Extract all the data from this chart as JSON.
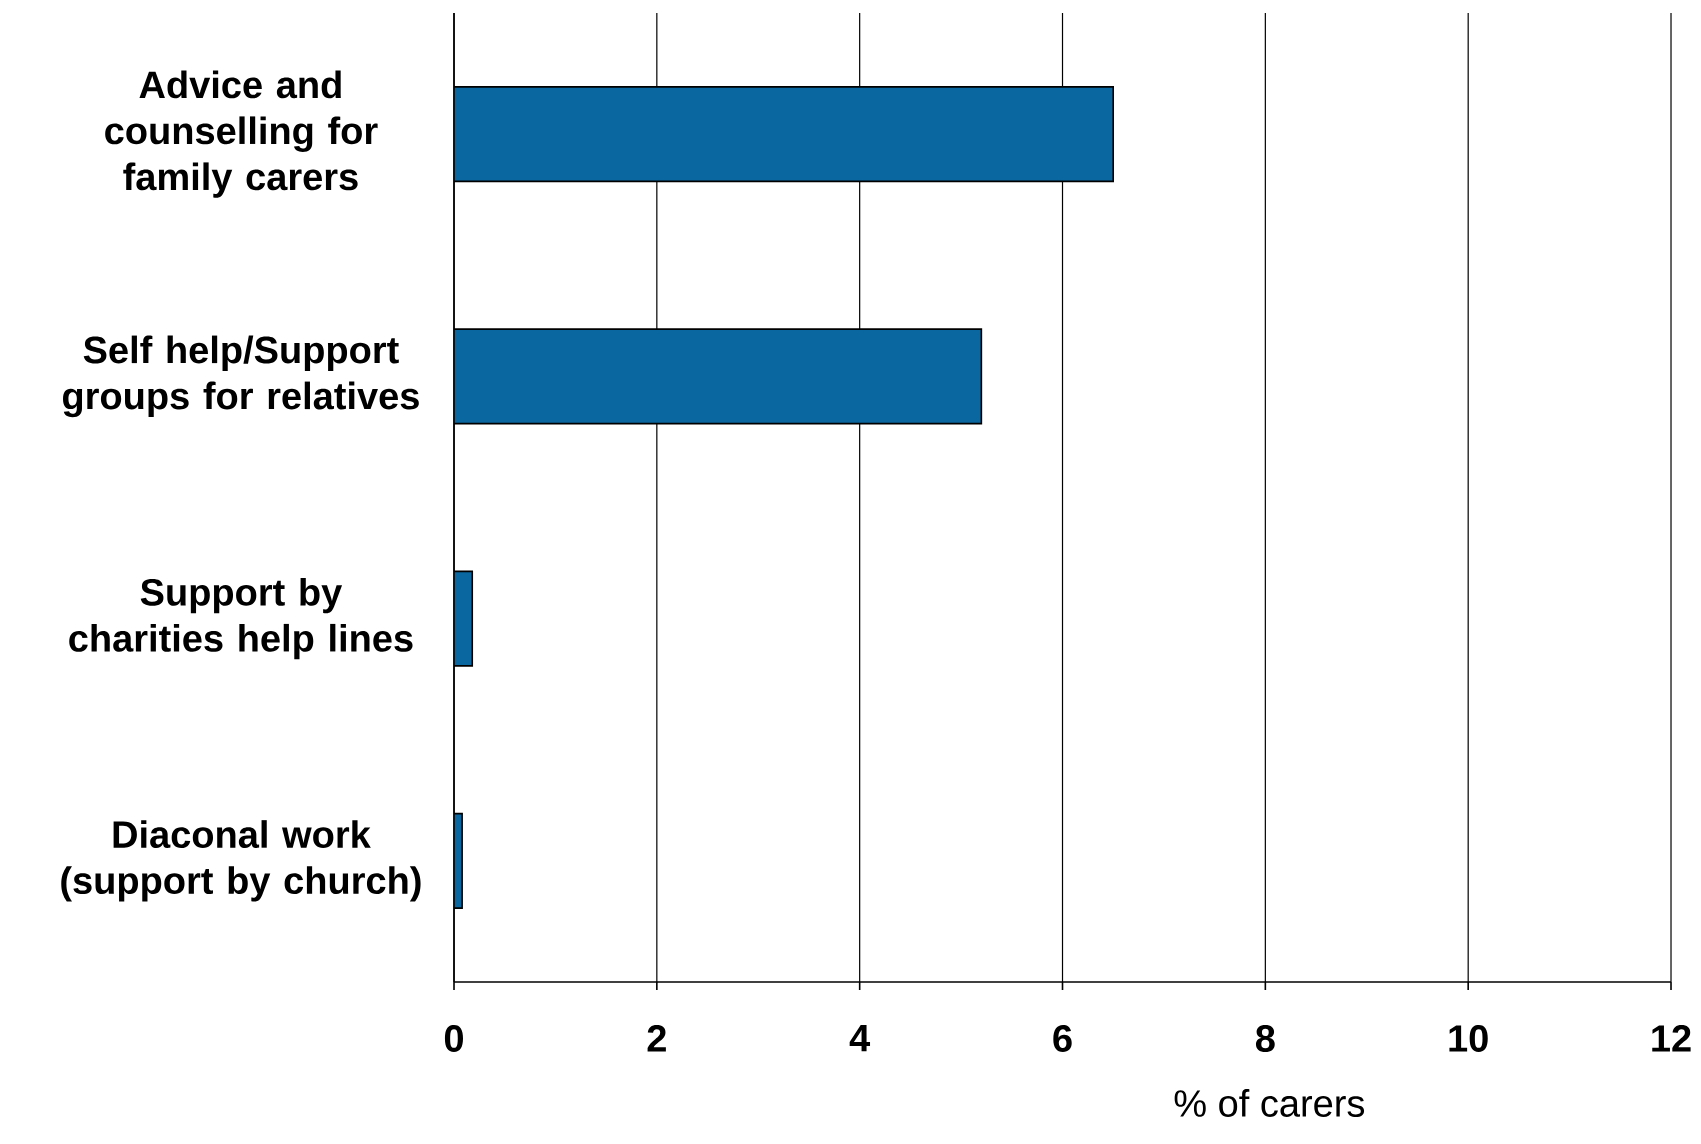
{
  "chart_data": {
    "type": "bar",
    "orientation": "horizontal",
    "xlabel": "% of carers",
    "categories": [
      "Advice and counselling for family carers",
      "Self help/Support groups for relatives",
      "Support by charities help lines",
      "Diaconal work (support by church)"
    ],
    "values": [
      6.5,
      5.2,
      0.18,
      0.08
    ],
    "color": "#0a67a0",
    "xlim": [
      0,
      12
    ],
    "xticks": [
      0,
      2,
      4,
      6,
      8,
      10,
      12
    ],
    "grid": "x"
  }
}
